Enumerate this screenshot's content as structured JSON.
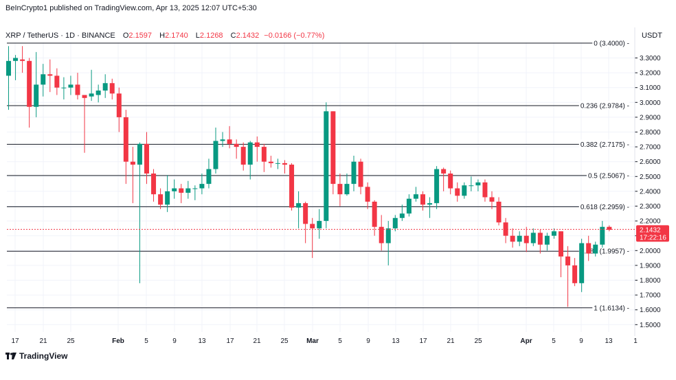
{
  "header": {
    "published": "BeInCrypto1 published on TradingView.com, Apr 13, 2025 12:07 UTC+5:30"
  },
  "legend": {
    "symbol": "XRP / TetherUS · 1D · BINANCE",
    "open_label": "O",
    "open": "2.1597",
    "high_label": "H",
    "high": "2.1740",
    "low_label": "L",
    "low": "2.1268",
    "close_label": "C",
    "close": "2.1432",
    "change": "−0.0166 (−0.77%)"
  },
  "currency": "USDT",
  "price_tag": {
    "value": "2.1432",
    "countdown": "17:22:16"
  },
  "footer": {
    "brand": "TradingView"
  },
  "colors": {
    "up": "#089981",
    "down": "#f23645",
    "fib_line": "#131722",
    "grid": "#f0f3fa",
    "price_tag": "#f23645"
  },
  "chart_data": {
    "type": "candlestick",
    "ylim": [
      1.45,
      3.45
    ],
    "y_ticks": [
      "3.3000",
      "3.2000",
      "3.1000",
      "3.0000",
      "2.9000",
      "2.8000",
      "2.7000",
      "2.6000",
      "2.5000",
      "2.4000",
      "2.3000",
      "2.2000",
      "2.1000",
      "2.0000",
      "1.9000",
      "1.8000",
      "1.7000",
      "1.6000",
      "1.5000"
    ],
    "x_ticks": [
      "17",
      "21",
      "25",
      "Feb",
      "5",
      "9",
      "13",
      "17",
      "21",
      "25",
      "Mar",
      "5",
      "9",
      "13",
      "17",
      "21",
      "25",
      "Apr",
      "5",
      "9",
      "13",
      "1"
    ],
    "fib_levels": [
      {
        "label": "0 (3.4000)",
        "value": 3.4
      },
      {
        "label": "0.236 (2.9784)",
        "value": 2.9784
      },
      {
        "label": "0.382 (2.7175)",
        "value": 2.7175
      },
      {
        "label": "0.5 (2.5067)",
        "value": 2.5067
      },
      {
        "label": "0.618 (2.2959)",
        "value": 2.2959
      },
      {
        "label": "0.786 (1.9957)",
        "value": 1.9957
      },
      {
        "label": "1 (1.6134)",
        "value": 1.6134
      }
    ],
    "trendline": [
      [
        1.615,
        97
      ],
      [
        2.15,
        102
      ]
    ],
    "candles": [
      [
        3.18,
        3.28,
        3.38,
        2.95
      ],
      [
        3.28,
        3.3,
        3.32,
        3.15
      ],
      [
        3.29,
        3.28,
        3.38,
        3.2
      ],
      [
        3.28,
        2.97,
        3.3,
        2.83
      ],
      [
        2.97,
        3.12,
        3.34,
        2.9
      ],
      [
        3.12,
        3.19,
        3.26,
        3.04
      ],
      [
        3.19,
        3.18,
        3.29,
        3.07
      ],
      [
        3.18,
        3.1,
        3.23,
        3.05
      ],
      [
        3.1,
        3.1,
        3.17,
        3.02
      ],
      [
        3.1,
        3.12,
        3.18,
        3.05
      ],
      [
        3.12,
        3.05,
        3.2,
        3.02
      ],
      [
        3.05,
        3.03,
        3.05,
        2.66
      ],
      [
        3.04,
        3.06,
        3.22,
        3.01
      ],
      [
        3.05,
        3.08,
        3.12,
        3.0
      ],
      [
        3.08,
        3.13,
        3.19,
        3.03
      ],
      [
        3.13,
        3.06,
        3.16,
        3.02
      ],
      [
        3.06,
        2.9,
        3.1,
        2.8
      ],
      [
        2.9,
        2.6,
        2.95,
        2.45
      ],
      [
        2.6,
        2.58,
        2.7,
        2.32
      ],
      [
        2.58,
        2.72,
        2.73,
        1.78
      ],
      [
        2.72,
        2.52,
        2.8,
        2.45
      ],
      [
        2.52,
        2.38,
        2.55,
        2.33
      ],
      [
        2.38,
        2.31,
        2.42,
        2.28
      ],
      [
        2.31,
        2.4,
        2.51,
        2.26
      ],
      [
        2.4,
        2.42,
        2.48,
        2.35
      ],
      [
        2.42,
        2.39,
        2.45,
        2.32
      ],
      [
        2.39,
        2.42,
        2.47,
        2.35
      ],
      [
        2.42,
        2.42,
        2.44,
        2.34
      ],
      [
        2.42,
        2.45,
        2.52,
        2.38
      ],
      [
        2.45,
        2.55,
        2.62,
        2.42
      ],
      [
        2.55,
        2.74,
        2.83,
        2.52
      ],
      [
        2.74,
        2.75,
        2.8,
        2.7
      ],
      [
        2.75,
        2.72,
        2.84,
        2.69
      ],
      [
        2.72,
        2.7,
        2.75,
        2.62
      ],
      [
        2.7,
        2.58,
        2.73,
        2.54
      ],
      [
        2.58,
        2.73,
        2.74,
        2.48
      ],
      [
        2.73,
        2.7,
        2.77,
        2.6
      ],
      [
        2.7,
        2.6,
        2.72,
        2.53
      ],
      [
        2.6,
        2.59,
        2.64,
        2.56
      ],
      [
        2.59,
        2.59,
        2.62,
        2.55
      ],
      [
        2.59,
        2.58,
        2.61,
        2.52
      ],
      [
        2.58,
        2.29,
        2.59,
        2.27
      ],
      [
        2.29,
        2.32,
        2.4,
        2.15
      ],
      [
        2.32,
        2.18,
        2.33,
        2.05
      ],
      [
        2.18,
        2.15,
        2.22,
        1.95
      ],
      [
        2.15,
        2.2,
        2.28,
        2.08
      ],
      [
        2.2,
        2.94,
        3.0,
        2.15
      ],
      [
        2.94,
        2.45,
        2.94,
        2.38
      ],
      [
        2.45,
        2.38,
        2.52,
        2.3
      ],
      [
        2.38,
        2.45,
        2.52,
        2.37
      ],
      [
        2.45,
        2.6,
        2.64,
        2.4
      ],
      [
        2.6,
        2.43,
        2.62,
        2.38
      ],
      [
        2.43,
        2.33,
        2.46,
        2.28
      ],
      [
        2.33,
        2.16,
        2.34,
        2.1
      ],
      [
        2.16,
        2.05,
        2.24,
        2.0
      ],
      [
        2.05,
        2.15,
        2.2,
        1.9
      ],
      [
        2.15,
        2.22,
        2.24,
        2.13
      ],
      [
        2.22,
        2.25,
        2.31,
        2.2
      ],
      [
        2.25,
        2.35,
        2.38,
        2.23
      ],
      [
        2.35,
        2.38,
        2.43,
        2.33
      ],
      [
        2.38,
        2.31,
        2.4,
        2.27
      ],
      [
        2.31,
        2.32,
        2.36,
        2.22
      ],
      [
        2.32,
        2.55,
        2.57,
        2.28
      ],
      [
        2.55,
        2.52,
        2.56,
        2.4
      ],
      [
        2.52,
        2.42,
        2.54,
        2.38
      ],
      [
        2.42,
        2.37,
        2.46,
        2.33
      ],
      [
        2.37,
        2.44,
        2.46,
        2.35
      ],
      [
        2.44,
        2.44,
        2.5,
        2.4
      ],
      [
        2.44,
        2.46,
        2.48,
        2.4
      ],
      [
        2.46,
        2.36,
        2.48,
        2.33
      ],
      [
        2.36,
        2.33,
        2.4,
        2.28
      ],
      [
        2.33,
        2.19,
        2.36,
        2.17
      ],
      [
        2.19,
        2.1,
        2.22,
        2.05
      ],
      [
        2.1,
        2.06,
        2.15,
        2.02
      ],
      [
        2.06,
        2.1,
        2.13,
        2.03
      ],
      [
        2.1,
        2.05,
        2.16,
        1.99
      ],
      [
        2.05,
        2.12,
        2.15,
        2.03
      ],
      [
        2.12,
        2.04,
        2.14,
        1.98
      ],
      [
        2.04,
        2.1,
        2.12,
        2.0
      ],
      [
        2.1,
        2.13,
        2.15,
        2.08
      ],
      [
        2.13,
        1.96,
        2.13,
        1.82
      ],
      [
        1.96,
        1.9,
        2.03,
        1.62
      ],
      [
        1.9,
        1.78,
        1.95,
        1.76
      ],
      [
        1.78,
        2.05,
        2.08,
        1.72
      ],
      [
        2.05,
        1.98,
        2.1,
        1.93
      ],
      [
        1.98,
        2.04,
        2.06,
        1.96
      ],
      [
        2.04,
        2.16,
        2.2,
        2.02
      ],
      [
        2.16,
        2.14,
        2.17,
        2.13
      ]
    ]
  }
}
